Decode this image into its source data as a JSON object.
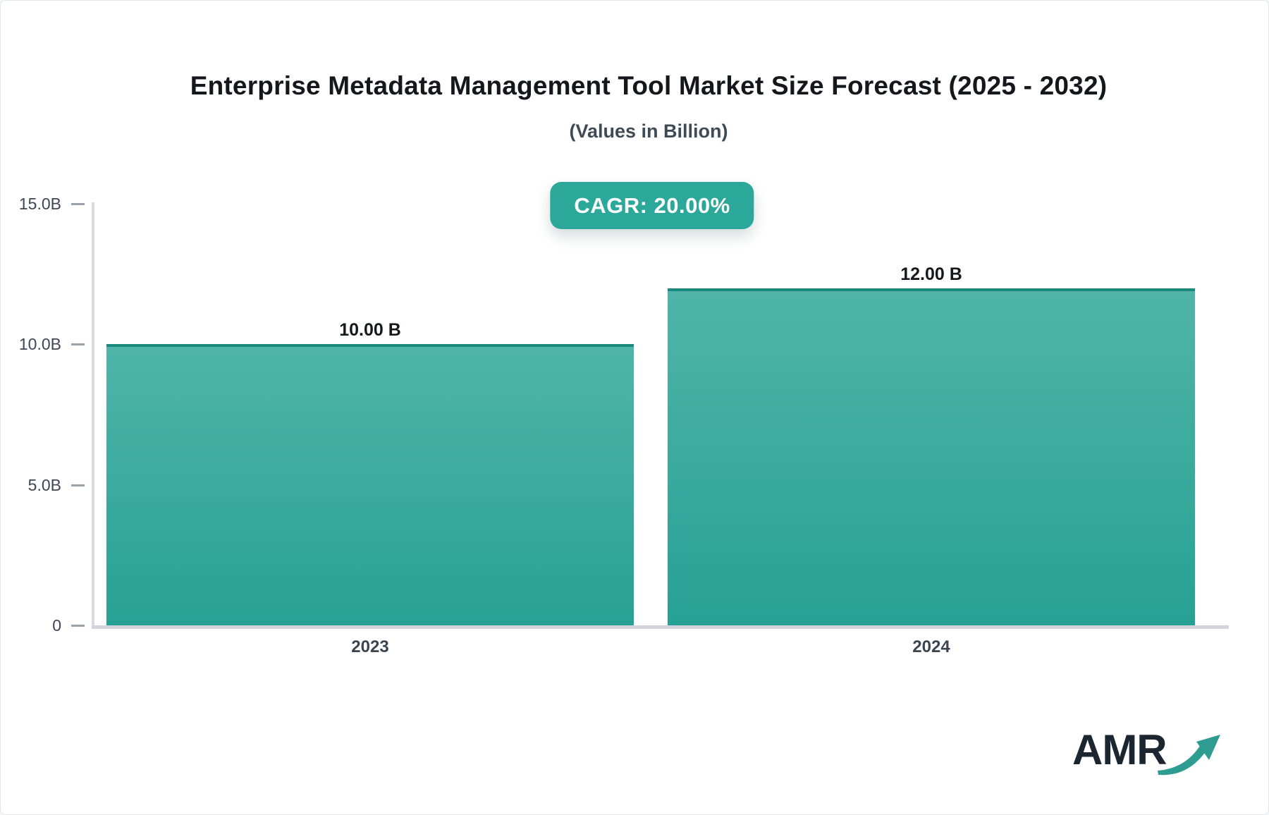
{
  "page": {
    "title": "Enterprise Metadata Management Tool Market Size Forecast (2025 - 2032)",
    "subtitle": "(Values in Billion)"
  },
  "badge": {
    "label": "CAGR: 20.00%",
    "bg_color": "#2ca89a"
  },
  "logo": {
    "text": "AMR",
    "arrow_icon": "growth-arrow-icon",
    "text_color": "#1b2630",
    "arrow_color": "#2f9c92"
  },
  "colors": {
    "bar_gradient_top": "#50b4a9",
    "bar_gradient_bottom": "#27a195",
    "bar_top_cap": "#1a8a7f",
    "axis_line": "#d7dae0"
  },
  "chart_data": {
    "type": "bar",
    "title": "Enterprise Metadata Management Tool Market Size Forecast (2025 - 2032)",
    "subtitle": "(Values in Billion)",
    "annotation": "CAGR: 20.00%",
    "categories": [
      "2023",
      "2024"
    ],
    "values": [
      10.0,
      12.0
    ],
    "value_labels": [
      "10.00 B",
      "12.00 B"
    ],
    "xlabel": "",
    "ylabel": "",
    "ylim": [
      0,
      15
    ],
    "yticks": [
      {
        "label": "0",
        "value": 0
      },
      {
        "label": "5.0B",
        "value": 5
      },
      {
        "label": "10.0B",
        "value": 10
      },
      {
        "label": "15.0B",
        "value": 15
      }
    ],
    "grid": false,
    "legend": false
  }
}
